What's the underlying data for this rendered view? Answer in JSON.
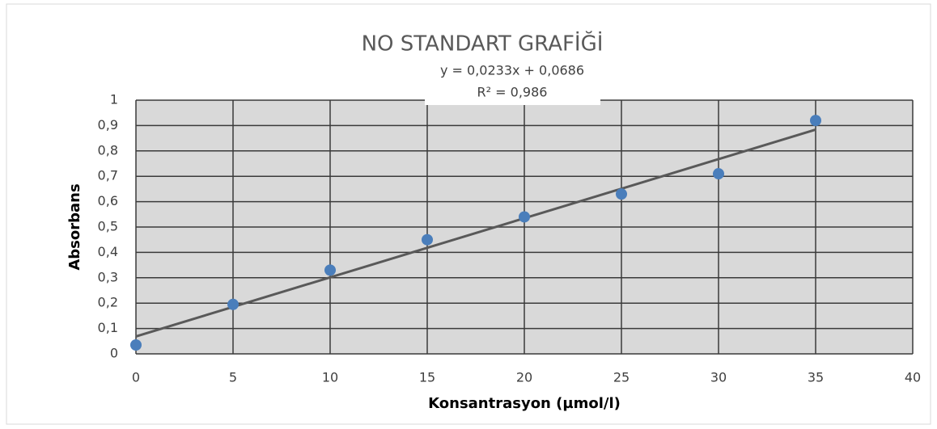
{
  "chart_data": {
    "type": "scatter",
    "title": "NO STANDART GRAFİĞİ",
    "xlabel": "Konsantrasyon (µmol/l)",
    "ylabel": "Absorbans",
    "x": [
      0,
      5,
      10,
      15,
      20,
      25,
      30,
      35
    ],
    "series": [
      {
        "color": "#4a7ebb",
        "values": [
          0.035,
          0.195,
          0.33,
          0.45,
          0.54,
          0.63,
          0.71,
          0.92
        ]
      }
    ],
    "trendline": {
      "slope": 0.0233,
      "intercept": 0.0686,
      "color": "#595959",
      "equation": "y = 0,0233x + 0,0686",
      "r2": "R² = 0,986"
    },
    "xlim": [
      0,
      40
    ],
    "xticks": [
      0,
      5,
      10,
      15,
      20,
      25,
      30,
      35,
      40
    ],
    "ylim": [
      0,
      1
    ],
    "yticks": [
      0,
      {
        "value": 0.1,
        "label": "0,1"
      },
      {
        "value": 0.2,
        "label": "0,2"
      },
      {
        "value": 0.3,
        "label": "0,3"
      },
      {
        "value": 0.4,
        "label": "0,4"
      },
      {
        "value": 0.5,
        "label": "0,5"
      },
      {
        "value": 0.6,
        "label": "0,6"
      },
      {
        "value": 0.7,
        "label": "0,7"
      },
      {
        "value": 0.8,
        "label": "0,8"
      },
      {
        "value": 0.9,
        "label": "0,9"
      },
      1
    ],
    "grid": true
  }
}
